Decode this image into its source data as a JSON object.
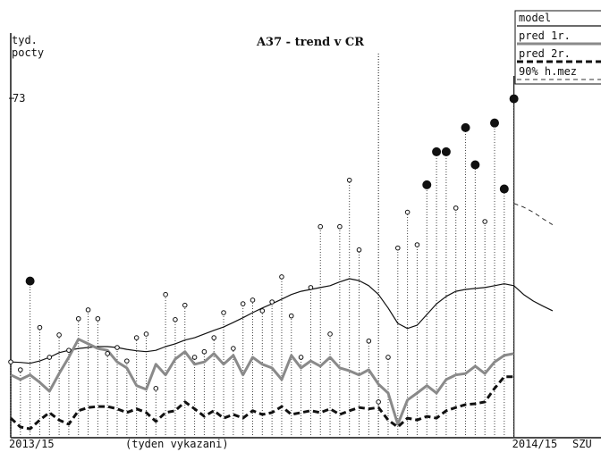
{
  "chart_data": {
    "type": "line",
    "title": "A37 - trend v CR",
    "y_label": [
      "tyd.",
      "pocty"
    ],
    "x_label": "(tyden vykazani)",
    "x_suffix": "SZU",
    "categories": [
      "2013/15",
      null,
      null,
      null,
      null,
      null,
      null,
      null,
      null,
      null,
      null,
      null,
      null,
      null,
      null,
      null,
      null,
      null,
      null,
      null,
      null,
      null,
      null,
      null,
      null,
      null,
      null,
      null,
      null,
      null,
      null,
      null,
      null,
      null,
      null,
      null,
      null,
      null,
      null,
      null,
      null,
      null,
      null,
      null,
      null,
      null,
      null,
      null,
      null,
      null,
      null,
      null,
      "2014/15",
      null,
      null,
      null,
      null
    ],
    "ylim": [
      0,
      88
    ],
    "yticks": [
      73
    ],
    "vlines": [
      {
        "at": 38,
        "style": "dotted"
      },
      {
        "at": 52,
        "style": "solid"
      }
    ],
    "observed": {
      "color": "#111111",
      "values": [
        16.3,
        14.6,
        33.7,
        23.7,
        17.3,
        22.1,
        18.8,
        25.6,
        27.5,
        25.6,
        18.1,
        19.4,
        16.5,
        21.5,
        22.3,
        10.6,
        30.8,
        25.4,
        28.5,
        17.3,
        18.5,
        21.5,
        26.9,
        19.2,
        28.8,
        29.6,
        27.3,
        29.2,
        34.6,
        26.2,
        17.3,
        32.3,
        45.4,
        22.3,
        45.4,
        55.4,
        40.4,
        20.8,
        7.7,
        17.3,
        40.8,
        48.5,
        41.5,
        54.4,
        61.5,
        61.5,
        49.4,
        66.7,
        58.7,
        46.5,
        67.7,
        53.5,
        72.9,
        null,
        null,
        null,
        null
      ],
      "filled": [
        false,
        false,
        true,
        false,
        false,
        false,
        false,
        false,
        false,
        false,
        false,
        false,
        false,
        false,
        false,
        false,
        false,
        false,
        false,
        false,
        false,
        false,
        false,
        false,
        false,
        false,
        false,
        false,
        false,
        false,
        false,
        false,
        false,
        false,
        false,
        false,
        false,
        false,
        false,
        false,
        false,
        false,
        false,
        true,
        true,
        true,
        false,
        true,
        true,
        false,
        true,
        true,
        true,
        false,
        false,
        false,
        false
      ]
    },
    "series": [
      {
        "name": "model",
        "color": "#111111",
        "style": "solid",
        "values": [
          16.3,
          16.2,
          16.0,
          16.5,
          17.3,
          18.3,
          18.8,
          19.2,
          19.4,
          19.6,
          19.6,
          19.4,
          19.0,
          18.7,
          18.5,
          18.8,
          19.6,
          20.2,
          21.0,
          21.5,
          22.3,
          23.1,
          23.8,
          24.8,
          25.8,
          26.9,
          27.9,
          28.8,
          29.8,
          30.8,
          31.5,
          31.9,
          32.3,
          32.7,
          33.5,
          34.2,
          33.8,
          32.7,
          30.8,
          27.9,
          24.6,
          23.5,
          24.2,
          26.5,
          28.8,
          30.4,
          31.5,
          31.9,
          32.1,
          32.3,
          32.7,
          33.1,
          32.7,
          30.8,
          29.4,
          28.3,
          27.3
        ]
      },
      {
        "name": "pred 1r.",
        "color": "#8a8a8a",
        "style": "thick",
        "values": [
          13.5,
          12.5,
          13.5,
          11.9,
          10.0,
          13.8,
          17.3,
          21.2,
          20.2,
          19.2,
          18.8,
          16.3,
          15.0,
          11.2,
          10.4,
          15.8,
          13.5,
          16.9,
          18.5,
          15.8,
          16.3,
          18.1,
          15.8,
          17.7,
          13.5,
          17.3,
          15.8,
          15.0,
          12.5,
          17.7,
          15.0,
          16.5,
          15.4,
          17.3,
          15.0,
          14.4,
          13.5,
          14.6,
          11.5,
          9.6,
          2.9,
          8.1,
          9.6,
          11.2,
          9.6,
          12.5,
          13.5,
          13.8,
          15.4,
          13.8,
          16.3,
          17.7,
          18.1,
          null,
          null,
          null,
          null
        ]
      },
      {
        "name": "pred 2r.",
        "color": "#111111",
        "style": "dashed",
        "values": [
          4.2,
          2.3,
          1.9,
          3.8,
          5.4,
          3.8,
          2.9,
          5.8,
          6.5,
          6.7,
          6.7,
          6.2,
          5.4,
          6.2,
          5.4,
          3.5,
          5.4,
          5.8,
          7.7,
          6.2,
          4.6,
          5.8,
          4.2,
          5.0,
          4.2,
          5.8,
          5.0,
          5.4,
          6.7,
          5.0,
          5.4,
          5.8,
          5.4,
          6.2,
          5.0,
          5.8,
          6.5,
          6.2,
          6.5,
          3.8,
          2.3,
          4.2,
          3.8,
          4.6,
          4.2,
          5.8,
          6.5,
          7.1,
          7.3,
          7.7,
          10.6,
          13.1,
          13.1,
          null,
          null,
          null,
          null
        ]
      },
      {
        "name": "90% h.mez",
        "color": "#333333",
        "style": "thin-dashed",
        "values": [
          null,
          null,
          null,
          null,
          null,
          null,
          null,
          null,
          null,
          null,
          null,
          null,
          null,
          null,
          null,
          null,
          null,
          null,
          null,
          null,
          null,
          null,
          null,
          null,
          null,
          null,
          null,
          null,
          null,
          null,
          null,
          null,
          null,
          null,
          null,
          null,
          null,
          null,
          null,
          null,
          null,
          null,
          null,
          null,
          null,
          null,
          null,
          null,
          null,
          null,
          null,
          null,
          50.4,
          49.6,
          48.5,
          47.1,
          45.8
        ]
      }
    ]
  }
}
